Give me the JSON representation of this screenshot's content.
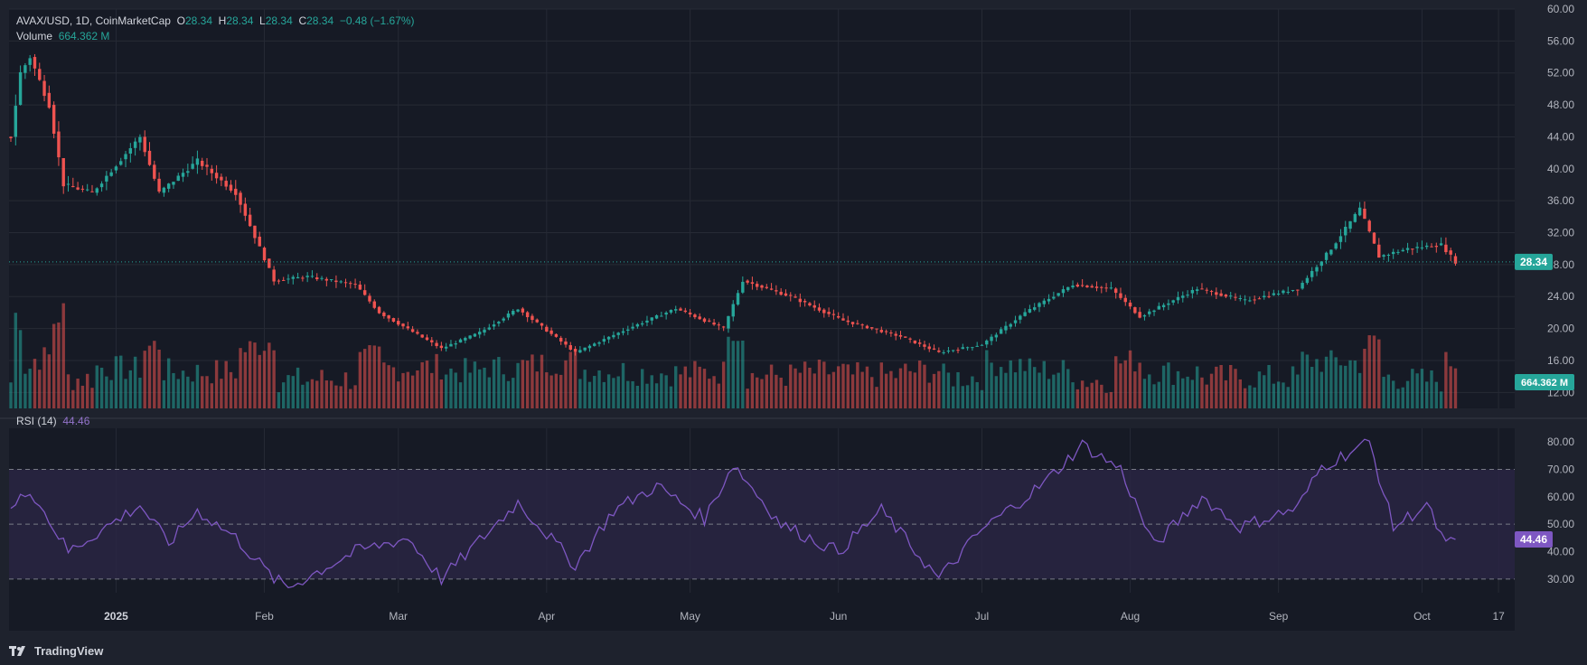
{
  "header": {
    "symbol_line": "AVAX/USD, 1D, CoinMarketCap",
    "open_label": "O",
    "open": "28.34",
    "high_label": "H",
    "high": "28.34",
    "low_label": "L",
    "low": "28.34",
    "close_label": "C",
    "close": "28.34",
    "change": "−0.48 (−1.67%)",
    "volume_label": "Volume",
    "volume": "664.362 M"
  },
  "rsi_legend": {
    "label": "RSI (14)",
    "value": "44.46"
  },
  "brand": {
    "name": "TradingView"
  },
  "colors": {
    "background": "#1e222d",
    "panel": "#161a25",
    "grid": "#262a35",
    "up": "#26a69a",
    "down": "#ef5350",
    "rsi_line": "#7e57c2",
    "rsi_band": "#2a2545",
    "price_line": "#26a69a",
    "axis_text": "#b2b5be"
  },
  "chart_data": [
    {
      "type": "candlestick",
      "title": "AVAX/USD, 1D, CoinMarketCap",
      "ylim": [
        10,
        60
      ],
      "y_ticks": [
        "12.00",
        "16.00",
        "20.00",
        "24.00",
        "28.00",
        "32.00",
        "36.00",
        "40.00",
        "44.00",
        "48.00",
        "52.00",
        "56.00",
        "60.00"
      ],
      "x_ticks": [
        "2025",
        "Feb",
        "Mar",
        "Apr",
        "May",
        "Jun",
        "Jul",
        "Aug",
        "Sep",
        "Oct",
        "17"
      ],
      "last_price": "28.34",
      "last_volume": "664.362 M",
      "approx_close_path": [
        {
          "date": "2024-12-10",
          "close": 44.0
        },
        {
          "date": "2024-12-12",
          "close": 52.0
        },
        {
          "date": "2024-12-14",
          "close": 54.0
        },
        {
          "date": "2024-12-18",
          "close": 48.0
        },
        {
          "date": "2024-12-21",
          "close": 38.0
        },
        {
          "date": "2024-12-27",
          "close": 37.0
        },
        {
          "date": "2025-01-06",
          "close": 44.0
        },
        {
          "date": "2025-01-10",
          "close": 37.0
        },
        {
          "date": "2025-01-18",
          "close": 41.0
        },
        {
          "date": "2025-01-26",
          "close": 37.0
        },
        {
          "date": "2025-02-03",
          "close": 26.0
        },
        {
          "date": "2025-02-10",
          "close": 26.5
        },
        {
          "date": "2025-02-20",
          "close": 25.5
        },
        {
          "date": "2025-02-25",
          "close": 22.0
        },
        {
          "date": "2025-03-10",
          "close": 17.5
        },
        {
          "date": "2025-03-18",
          "close": 19.5
        },
        {
          "date": "2025-03-26",
          "close": 22.5
        },
        {
          "date": "2025-04-07",
          "close": 17.0
        },
        {
          "date": "2025-04-18",
          "close": 20.0
        },
        {
          "date": "2025-04-28",
          "close": 22.5
        },
        {
          "date": "2025-05-08",
          "close": 20.0
        },
        {
          "date": "2025-05-12",
          "close": 26.0
        },
        {
          "date": "2025-05-22",
          "close": 24.0
        },
        {
          "date": "2025-06-02",
          "close": 21.0
        },
        {
          "date": "2025-06-14",
          "close": 19.0
        },
        {
          "date": "2025-06-22",
          "close": 17.0
        },
        {
          "date": "2025-07-01",
          "close": 18.0
        },
        {
          "date": "2025-07-10",
          "close": 22.0
        },
        {
          "date": "2025-07-20",
          "close": 25.5
        },
        {
          "date": "2025-07-28",
          "close": 25.0
        },
        {
          "date": "2025-08-03",
          "close": 21.5
        },
        {
          "date": "2025-08-15",
          "close": 25.0
        },
        {
          "date": "2025-08-25",
          "close": 23.5
        },
        {
          "date": "2025-09-05",
          "close": 25.0
        },
        {
          "date": "2025-09-12",
          "close": 30.0
        },
        {
          "date": "2025-09-18",
          "close": 35.0
        },
        {
          "date": "2025-09-22",
          "close": 29.0
        },
        {
          "date": "2025-09-28",
          "close": 30.0
        },
        {
          "date": "2025-10-05",
          "close": 30.5
        },
        {
          "date": "2025-10-08",
          "close": 28.34
        }
      ]
    },
    {
      "type": "line",
      "title": "RSI (14)",
      "ylim": [
        25,
        85
      ],
      "y_ticks": [
        "30.00",
        "40.00",
        "50.00",
        "60.00",
        "70.00",
        "80.00"
      ],
      "bands": [
        30,
        50,
        70
      ],
      "last_value": "44.46",
      "approx_path": [
        {
          "date": "2024-12-10",
          "rsi": 55
        },
        {
          "date": "2024-12-14",
          "rsi": 63
        },
        {
          "date": "2024-12-22",
          "rsi": 40
        },
        {
          "date": "2025-01-06",
          "rsi": 57
        },
        {
          "date": "2025-01-12",
          "rsi": 43
        },
        {
          "date": "2025-01-18",
          "rsi": 55
        },
        {
          "date": "2025-01-26",
          "rsi": 45
        },
        {
          "date": "2025-02-03",
          "rsi": 30
        },
        {
          "date": "2025-02-06",
          "rsi": 27
        },
        {
          "date": "2025-02-20",
          "rsi": 40
        },
        {
          "date": "2025-03-03",
          "rsi": 45
        },
        {
          "date": "2025-03-10",
          "rsi": 30
        },
        {
          "date": "2025-03-26",
          "rsi": 58
        },
        {
          "date": "2025-04-07",
          "rsi": 35
        },
        {
          "date": "2025-04-15",
          "rsi": 55
        },
        {
          "date": "2025-04-24",
          "rsi": 64
        },
        {
          "date": "2025-05-04",
          "rsi": 52
        },
        {
          "date": "2025-05-10",
          "rsi": 72
        },
        {
          "date": "2025-05-20",
          "rsi": 50
        },
        {
          "date": "2025-06-01",
          "rsi": 40
        },
        {
          "date": "2025-06-10",
          "rsi": 55
        },
        {
          "date": "2025-06-22",
          "rsi": 30
        },
        {
          "date": "2025-07-01",
          "rsi": 48
        },
        {
          "date": "2025-07-14",
          "rsi": 65
        },
        {
          "date": "2025-07-22",
          "rsi": 79
        },
        {
          "date": "2025-07-30",
          "rsi": 70
        },
        {
          "date": "2025-08-06",
          "rsi": 42
        },
        {
          "date": "2025-08-16",
          "rsi": 60
        },
        {
          "date": "2025-08-24",
          "rsi": 49
        },
        {
          "date": "2025-09-05",
          "rsi": 56
        },
        {
          "date": "2025-09-10",
          "rsi": 71
        },
        {
          "date": "2025-09-20",
          "rsi": 80
        },
        {
          "date": "2025-09-25",
          "rsi": 49
        },
        {
          "date": "2025-10-02",
          "rsi": 57
        },
        {
          "date": "2025-10-06",
          "rsi": 42
        },
        {
          "date": "2025-10-08",
          "rsi": 44.46
        }
      ]
    }
  ]
}
